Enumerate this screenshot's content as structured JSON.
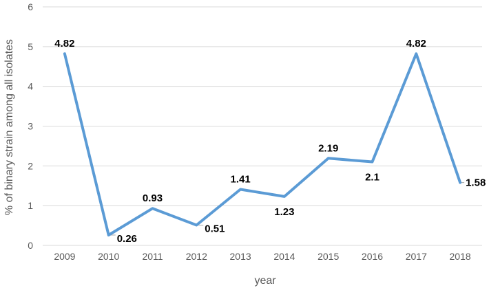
{
  "chart_data": {
    "type": "line",
    "title": "",
    "xlabel": "year",
    "ylabel": "% of binary strain among all isolates",
    "categories": [
      "2009",
      "2010",
      "2011",
      "2012",
      "2013",
      "2014",
      "2015",
      "2016",
      "2017",
      "2018"
    ],
    "series": [
      {
        "values": [
          4.82,
          0.26,
          0.93,
          0.51,
          1.41,
          1.23,
          2.19,
          2.1,
          4.82,
          1.58
        ]
      }
    ],
    "data_labels": [
      "4.82",
      "0.26",
      "0.93",
      "0.51",
      "1.41",
      "1.23",
      "2.19",
      "2.1",
      "4.82",
      "1.58"
    ],
    "ylim": [
      0,
      6
    ],
    "yticks": [
      "0",
      "1",
      "2",
      "3",
      "4",
      "5",
      "6"
    ],
    "grid": true,
    "line_color": "#5b9bd5"
  }
}
